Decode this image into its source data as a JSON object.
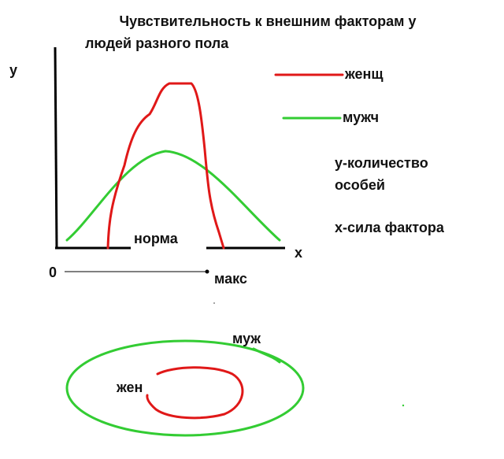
{
  "title": [
    "Чувствительность к внешним факторам у",
    "людей разного пола"
  ],
  "graph": {
    "y_axis_label": "у",
    "x_axis_label": "х",
    "norm_label": "норма",
    "range": {
      "start": "0",
      "end": "макс"
    }
  },
  "legend": [
    {
      "label": "женщ",
      "color": "#e01818"
    },
    {
      "label": "мужч",
      "color": "#33cc33"
    }
  ],
  "notes": [
    "у-количество",
    "особей",
    "х-сила фактора"
  ],
  "rings": {
    "outer_label": "муж",
    "inner_label": "жен"
  }
}
